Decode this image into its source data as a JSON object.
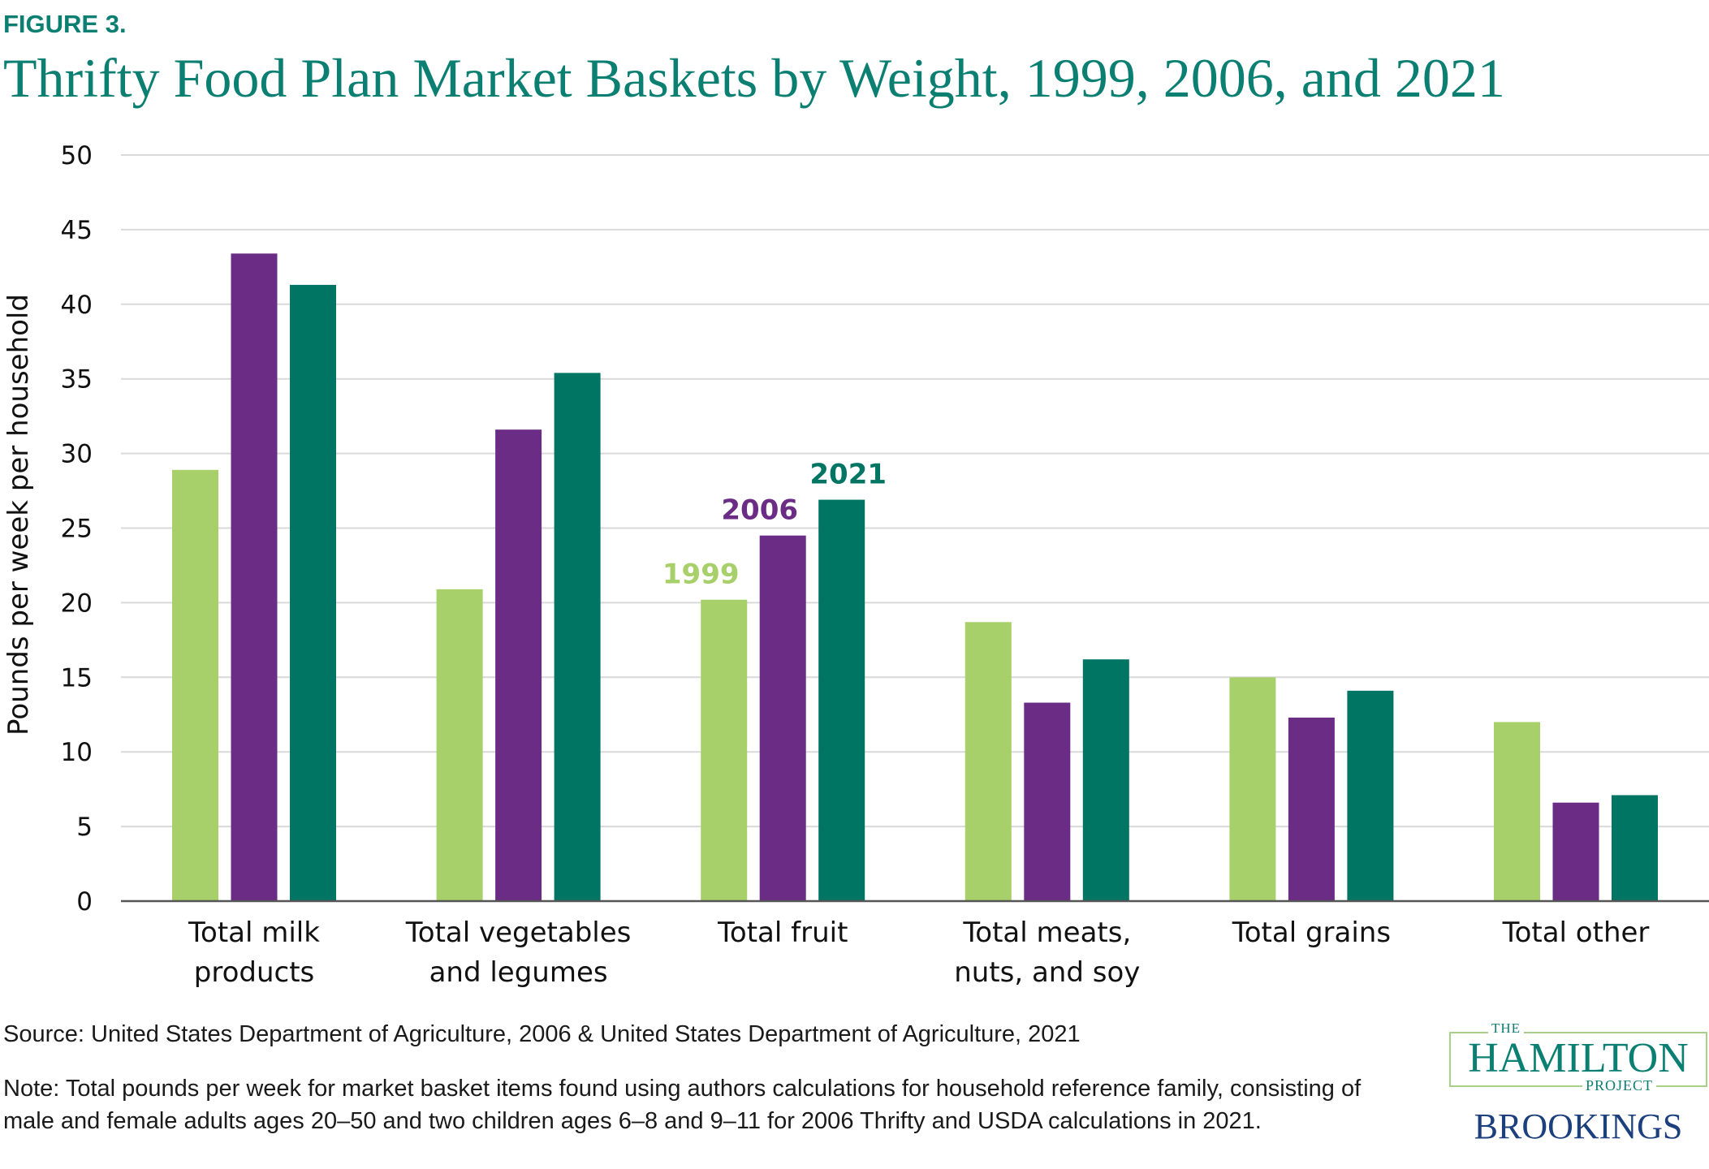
{
  "figure_label": "FIGURE 3.",
  "title": "Thrifty Food Plan Market Baskets by Weight, 1999, 2006, and 2021",
  "source": "Source: United States Department of Agriculture, 2006 & United States Department of Agriculture, 2021",
  "note": "Note: Total pounds per week for market basket items found using authors calculations for household reference family, consisting of male and female adults ages 20–50 and two children ages 6–8 and 9–11 for 2006 Thrifty and USDA calculations in 2021.",
  "logo": {
    "the": "THE",
    "hamilton": "HAMILTON",
    "project": "PROJECT",
    "brookings": "BROOKINGS"
  },
  "colors": {
    "title": "#0b7f72",
    "series_1999": "#a7d06a",
    "series_2006": "#6b2c85",
    "series_2021": "#007563",
    "grid": "#d9d9d9",
    "axis": "#555555"
  },
  "chart_data": {
    "type": "bar",
    "title": "Thrifty Food Plan Market Baskets by Weight, 1999, 2006, and 2021",
    "xlabel": "",
    "ylabel": "Pounds per week per household",
    "ylim": [
      0,
      50
    ],
    "yticks": [
      0,
      5,
      10,
      15,
      20,
      25,
      30,
      35,
      40,
      45,
      50
    ],
    "grid": true,
    "legend": "inline-labels-above-total-fruit",
    "categories": [
      [
        "Total milk",
        "products"
      ],
      [
        "Total vegetables",
        "and legumes"
      ],
      [
        "Total fruit"
      ],
      [
        "Total meats,",
        "nuts, and soy"
      ],
      [
        "Total grains"
      ],
      [
        "Total other"
      ]
    ],
    "series": [
      {
        "name": "1999",
        "color": "#a7d06a",
        "values": [
          28.9,
          20.9,
          20.2,
          18.7,
          15.0,
          12.0
        ]
      },
      {
        "name": "2006",
        "color": "#6b2c85",
        "values": [
          43.4,
          31.6,
          24.5,
          13.3,
          12.3,
          6.6
        ]
      },
      {
        "name": "2021",
        "color": "#007563",
        "values": [
          41.3,
          35.4,
          26.9,
          16.2,
          14.1,
          7.1
        ]
      }
    ],
    "series_label_category_index": 2
  }
}
